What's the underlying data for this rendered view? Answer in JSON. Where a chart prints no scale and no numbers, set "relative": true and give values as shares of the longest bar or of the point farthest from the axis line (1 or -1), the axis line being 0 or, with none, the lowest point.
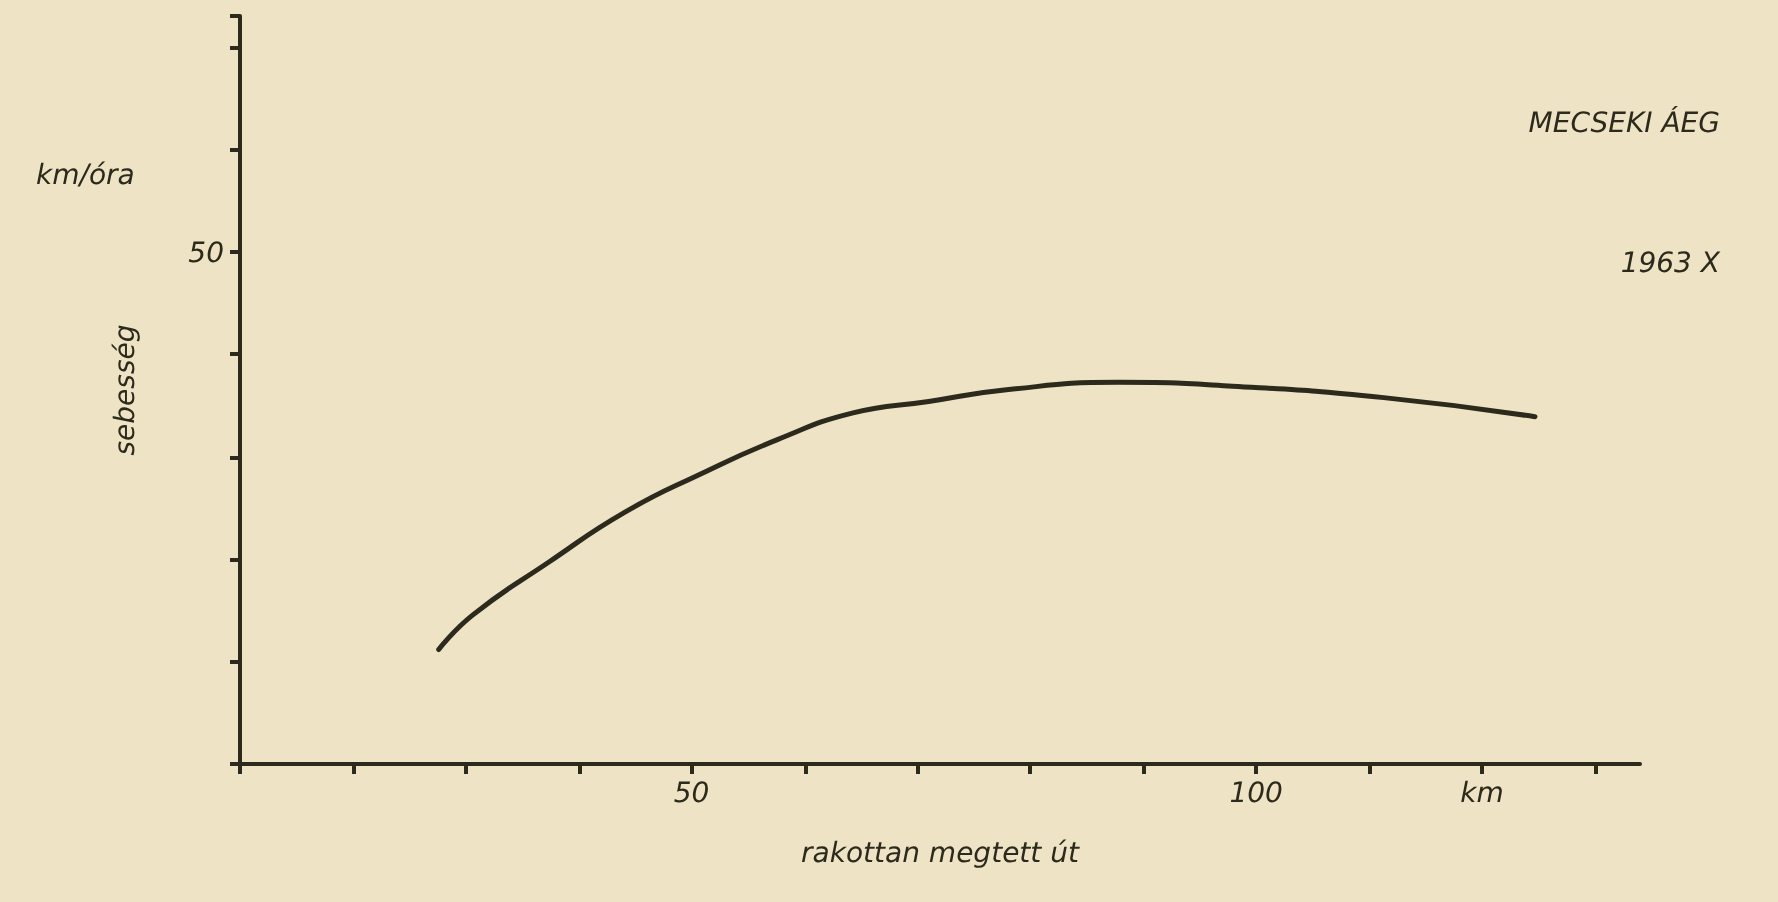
{
  "chart_data": {
    "type": "line",
    "xlabel": "rakottan megtett út",
    "ylabel": "sebesség",
    "annotations": [
      "km/óra",
      "MECSEKI ÁEG",
      "1963 X",
      "50"
    ],
    "relative": true,
    "x": [
      27.6,
      30.6,
      37.4,
      44.1,
      50.8,
      57.6,
      64.3,
      71,
      77.7,
      87.8,
      97.9,
      111.3,
      124.7
    ],
    "series": [
      {
        "color": "#2b2a1c",
        "values": [
          0.3,
          0.39,
          0.53,
          0.66,
          0.76,
          0.85,
          0.92,
          0.95,
          0.98,
          1,
          0.99,
          0.96,
          0.91
        ]
      }
    ],
    "xlim": [
      10,
      134
    ],
    "xticks": [
      {
        "value": 10,
        "label": null
      },
      {
        "value": 20,
        "label": null
      },
      {
        "value": 30,
        "label": null
      },
      {
        "value": 40,
        "label": null
      },
      50,
      {
        "value": 60,
        "label": null
      },
      {
        "value": 70,
        "label": null
      },
      {
        "value": 80,
        "label": null
      },
      {
        "value": 90,
        "label": null
      },
      100,
      {
        "value": 110,
        "label": null
      },
      {
        "value": 120,
        "label": "km"
      },
      {
        "value": 130,
        "label": null
      }
    ],
    "grid": false,
    "marker": "none",
    "line_style": "solid"
  }
}
